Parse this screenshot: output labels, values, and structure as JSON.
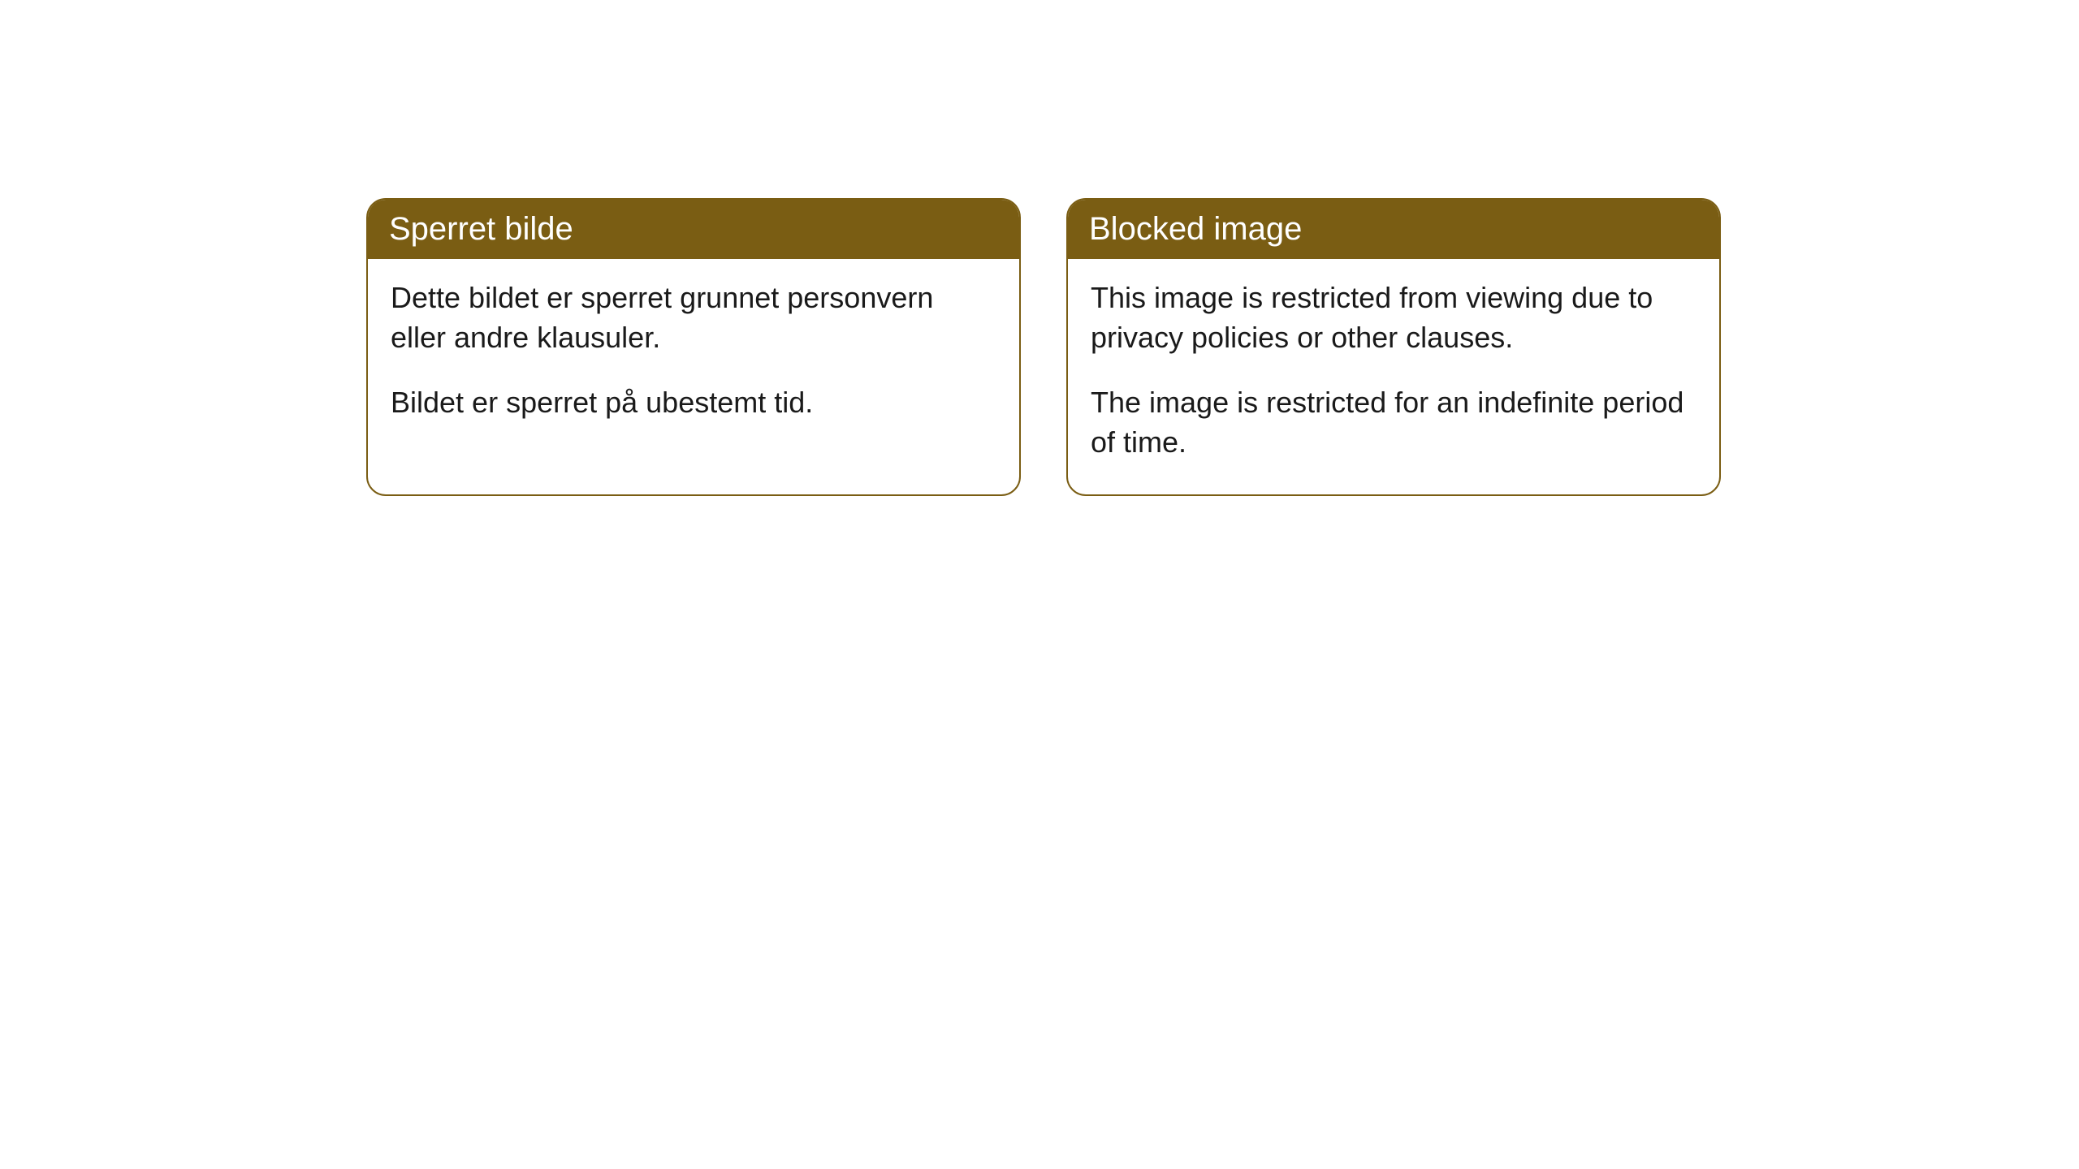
{
  "cards": [
    {
      "title": "Sperret bilde",
      "paragraph1": "Dette bildet er sperret grunnet personvern eller andre klausuler.",
      "paragraph2": "Bildet er sperret på ubestemt tid."
    },
    {
      "title": "Blocked image",
      "paragraph1": "This image is restricted from viewing due to privacy policies or other clauses.",
      "paragraph2": "The image is restricted for an indefinite period of time."
    }
  ],
  "style": {
    "header_background": "#7a5d13",
    "header_text_color": "#ffffff",
    "border_color": "#7a5d13",
    "body_background": "#ffffff",
    "body_text_color": "#1a1a1a",
    "border_radius": 24,
    "title_fontsize": 40,
    "body_fontsize": 36
  }
}
